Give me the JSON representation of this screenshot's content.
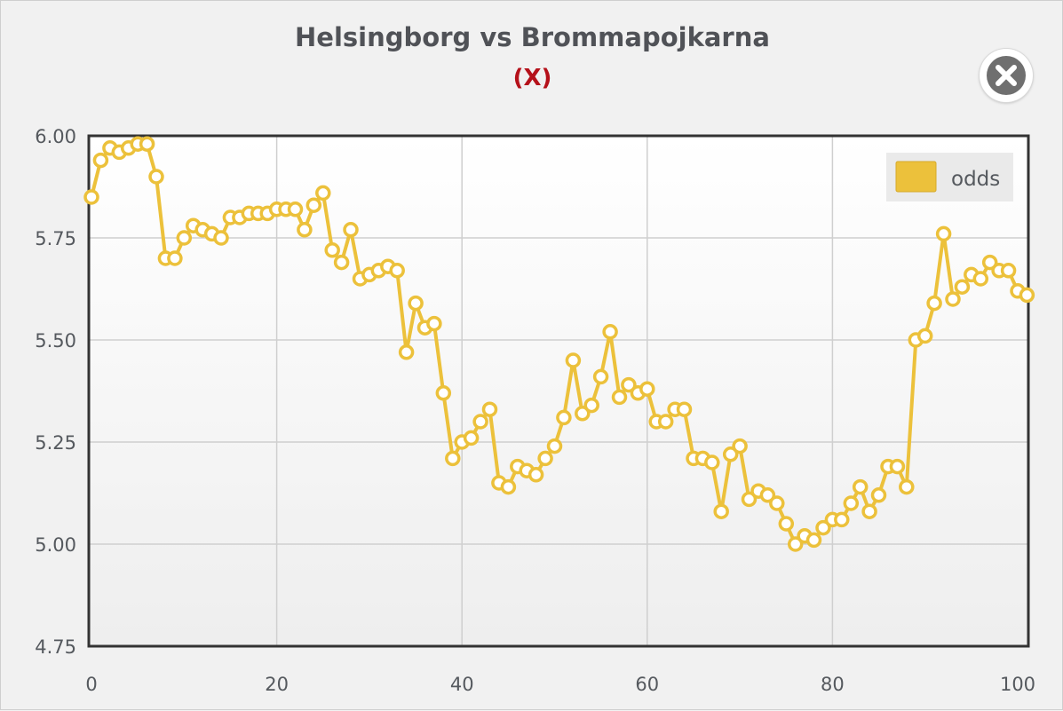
{
  "chart_data": {
    "type": "line",
    "title": "Helsingborg vs Brommapojkarna",
    "subtitle": "(X)",
    "xlabel": "",
    "ylabel": "",
    "xlim": [
      0,
      101
    ],
    "ylim": [
      4.75,
      6.0
    ],
    "x_ticks": [
      "0",
      "20",
      "40",
      "60",
      "80",
      "100"
    ],
    "y_ticks": [
      "4.75",
      "5.00",
      "5.25",
      "5.50",
      "5.75",
      "6.00"
    ],
    "grid": true,
    "legend_position": "top-right",
    "series": [
      {
        "name": "odds",
        "color": "#ecc13b",
        "x": [
          0,
          1,
          2,
          3,
          4,
          5,
          6,
          7,
          8,
          9,
          10,
          11,
          12,
          13,
          14,
          15,
          16,
          17,
          18,
          19,
          20,
          21,
          22,
          23,
          24,
          25,
          26,
          27,
          28,
          29,
          30,
          31,
          32,
          33,
          34,
          35,
          36,
          37,
          38,
          39,
          40,
          41,
          42,
          43,
          44,
          45,
          46,
          47,
          48,
          49,
          50,
          51,
          52,
          53,
          54,
          55,
          56,
          57,
          58,
          59,
          60,
          61,
          62,
          63,
          64,
          65,
          66,
          67,
          68,
          69,
          70,
          71,
          72,
          73,
          74,
          75,
          76,
          77,
          78,
          79,
          80,
          81,
          82,
          83,
          84,
          85,
          86,
          87,
          88,
          89,
          90,
          91,
          92,
          93,
          94,
          95,
          96,
          97,
          98,
          99,
          100,
          101
        ],
        "values": [
          5.85,
          5.94,
          5.97,
          5.96,
          5.97,
          5.98,
          5.98,
          5.9,
          5.7,
          5.7,
          5.75,
          5.78,
          5.77,
          5.76,
          5.75,
          5.8,
          5.8,
          5.81,
          5.81,
          5.81,
          5.82,
          5.82,
          5.82,
          5.77,
          5.83,
          5.86,
          5.72,
          5.69,
          5.77,
          5.65,
          5.66,
          5.67,
          5.68,
          5.67,
          5.47,
          5.59,
          5.53,
          5.54,
          5.37,
          5.21,
          5.25,
          5.26,
          5.3,
          5.33,
          5.15,
          5.14,
          5.19,
          5.18,
          5.17,
          5.21,
          5.24,
          5.31,
          5.45,
          5.32,
          5.34,
          5.41,
          5.52,
          5.36,
          5.39,
          5.37,
          5.38,
          5.3,
          5.3,
          5.33,
          5.33,
          5.21,
          5.21,
          5.2,
          5.08,
          5.22,
          5.24,
          5.11,
          5.13,
          5.12,
          5.1,
          5.05,
          5.0,
          5.02,
          5.01,
          5.04,
          5.06,
          5.06,
          5.1,
          5.14,
          5.08,
          5.12,
          5.19,
          5.19,
          5.14,
          5.5,
          5.51,
          5.59,
          5.76,
          5.6,
          5.63,
          5.66,
          5.65,
          5.69,
          5.67,
          5.67,
          5.62,
          5.61
        ]
      }
    ]
  }
}
